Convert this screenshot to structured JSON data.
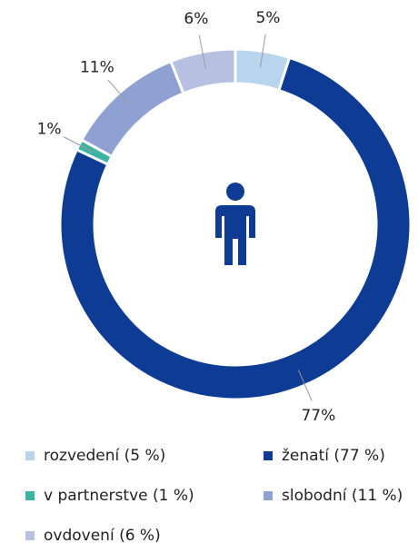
{
  "chart_data": {
    "type": "pie",
    "categories": [
      "rozvedení (5 %)",
      "ženatí (77 %)",
      "v partnerstve (1 %)",
      "slobodní (11 %)",
      "ovdovení (6 %)"
    ],
    "values": [
      5,
      77,
      1,
      11,
      6
    ],
    "value_labels": [
      "5%",
      "77%",
      "1%",
      "11%",
      "6%"
    ],
    "colors": [
      "#b9d5ee",
      "#0e3b94",
      "#3cb4a4",
      "#8fa1d3",
      "#b8c0e2"
    ],
    "donut": true
  }
}
